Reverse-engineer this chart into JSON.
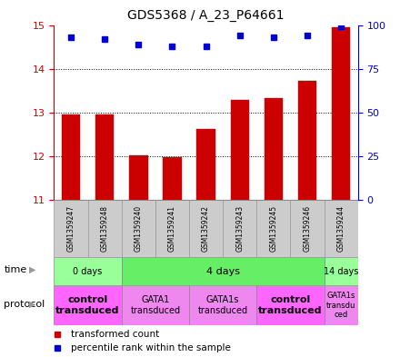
{
  "title": "GDS5368 / A_23_P64661",
  "samples": [
    "GSM1359247",
    "GSM1359248",
    "GSM1359240",
    "GSM1359241",
    "GSM1359242",
    "GSM1359243",
    "GSM1359245",
    "GSM1359246",
    "GSM1359244"
  ],
  "transformed_counts": [
    12.95,
    12.95,
    12.02,
    11.98,
    12.62,
    13.28,
    13.32,
    13.72,
    14.95
  ],
  "percentile_ranks": [
    93,
    92,
    89,
    88,
    88,
    94,
    93,
    94,
    99
  ],
  "ylim": [
    11,
    15
  ],
  "yticks": [
    11,
    12,
    13,
    14,
    15
  ],
  "y2ticks": [
    0,
    25,
    50,
    75,
    100
  ],
  "bar_color": "#cc0000",
  "dot_color": "#0000cc",
  "time_groups": [
    {
      "label": "0 days",
      "start": 0,
      "end": 2,
      "color": "#99ff99"
    },
    {
      "label": "4 days",
      "start": 2,
      "end": 8,
      "color": "#66ee66"
    },
    {
      "label": "14 days",
      "start": 8,
      "end": 9,
      "color": "#99ff99"
    }
  ],
  "protocol_groups": [
    {
      "label": "control\ntransduced",
      "start": 0,
      "end": 2,
      "color": "#ff66ff",
      "bold": true,
      "fontsize": 8
    },
    {
      "label": "GATA1\ntransduced",
      "start": 2,
      "end": 4,
      "color": "#ee88ee",
      "bold": false,
      "fontsize": 7
    },
    {
      "label": "GATA1s\ntransduced",
      "start": 4,
      "end": 6,
      "color": "#ee88ee",
      "bold": false,
      "fontsize": 7
    },
    {
      "label": "control\ntransduced",
      "start": 6,
      "end": 8,
      "color": "#ff66ff",
      "bold": true,
      "fontsize": 8
    },
    {
      "label": "GATA1s\ntransdu\nced",
      "start": 8,
      "end": 9,
      "color": "#ee88ee",
      "bold": false,
      "fontsize": 6
    }
  ],
  "sample_box_color": "#cccccc",
  "left_axis_color": "#cc0000",
  "right_axis_color": "#0000cc",
  "legend": [
    {
      "color": "#cc0000",
      "label": "transformed count"
    },
    {
      "color": "#0000cc",
      "label": "percentile rank within the sample"
    }
  ]
}
